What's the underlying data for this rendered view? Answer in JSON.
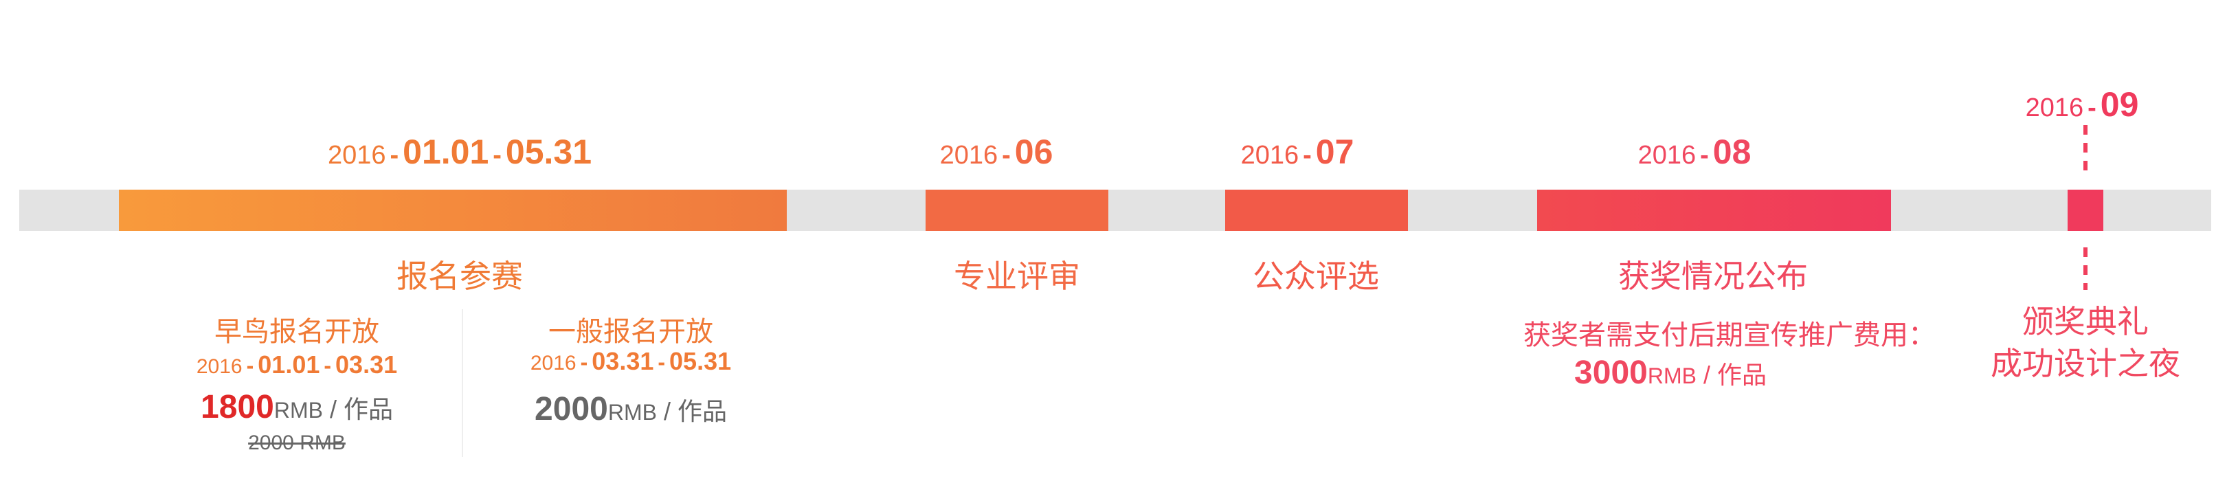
{
  "colors": {
    "track": "#e3e3e3",
    "orange": "#f07a35",
    "pink": "#f04860",
    "early_price": "#e02828",
    "regular_price": "#666666"
  },
  "timeline": {
    "phase1": {
      "year": "2016",
      "sep": "-",
      "start": "01.01",
      "sep2": "-",
      "end": "05.31",
      "label": "报名参赛",
      "early": {
        "title": "早鸟报名开放",
        "year": "2016",
        "sep": "-",
        "start": "01.01",
        "sep2": "-",
        "end": "03.31",
        "amount": "1800",
        "unit": "RMB",
        "per": " / 作品",
        "original": "2000 RMB"
      },
      "regular": {
        "title": "一般报名开放",
        "year": "2016",
        "sep": "-",
        "start": "03.31",
        "sep2": "-",
        "end": "05.31",
        "amount": "2000",
        "unit": "RMB",
        "per": " / 作品"
      }
    },
    "phase2": {
      "year": "2016",
      "sep": "-",
      "month": "06",
      "label": "专业评审"
    },
    "phase3": {
      "year": "2016",
      "sep": "-",
      "month": "07",
      "label": "公众评选"
    },
    "phase4": {
      "year": "2016",
      "sep": "-",
      "month": "08",
      "label": "获奖情况公布",
      "note": "获奖者需支付后期宣传推广费用：",
      "amount": "3000",
      "unit": "RMB",
      "per": " / 作品"
    },
    "phase5": {
      "year": "2016",
      "sep": "-",
      "month": "09",
      "line1": "颁奖典礼",
      "line2": "成功设计之夜"
    }
  }
}
